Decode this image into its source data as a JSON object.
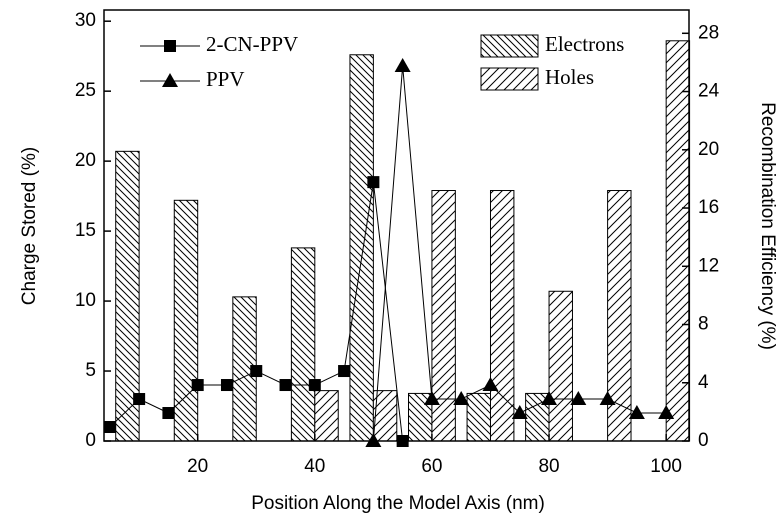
{
  "chart_data": {
    "type": "bar",
    "x_label": "Position Along the Model Axis (nm)",
    "y_label": "Charge Stored (%)",
    "y2_label": "Recombination Efficiency (%)",
    "xlim": [
      4,
      103.9
    ],
    "xticks": [
      20,
      40,
      60,
      80,
      100
    ],
    "ylim": [
      0,
      30.8
    ],
    "yticks": [
      0,
      5,
      10,
      15,
      20,
      25,
      30
    ],
    "y2lim": [
      0,
      29.6
    ],
    "y2ticks": [
      0,
      4,
      8,
      12,
      16,
      20,
      24,
      28
    ],
    "bar_width": 4,
    "series": [
      {
        "name": "Electrons",
        "type": "bar",
        "hatch": "backslash",
        "color": "#000000",
        "x": [
          8,
          18,
          28,
          38,
          48,
          58,
          68,
          78
        ],
        "values": [
          20.7,
          17.2,
          10.3,
          13.8,
          27.6,
          3.4,
          3.4,
          3.4
        ]
      },
      {
        "name": "Holes",
        "type": "bar",
        "hatch": "slash",
        "color": "#000000",
        "x": [
          42,
          52,
          62,
          72,
          82,
          92,
          102
        ],
        "values": [
          3.6,
          3.6,
          17.9,
          17.9,
          10.7,
          17.9,
          28.6
        ]
      },
      {
        "name": "2-CN-PPV",
        "type": "line",
        "marker": "square",
        "color": "#000000",
        "x": [
          5,
          10,
          15,
          20,
          25,
          30,
          35,
          40,
          45,
          50,
          55
        ],
        "values": [
          1,
          3,
          2,
          4,
          4,
          5,
          4,
          4,
          5,
          18.5,
          0
        ]
      },
      {
        "name": "PPV",
        "type": "line",
        "marker": "triangle",
        "color": "#000000",
        "x": [
          50,
          55,
          60,
          65,
          70,
          75,
          80,
          85,
          90,
          95,
          100
        ],
        "values": [
          0,
          26.8,
          3,
          3,
          4,
          2,
          3,
          3,
          3,
          2,
          2
        ]
      }
    ]
  }
}
